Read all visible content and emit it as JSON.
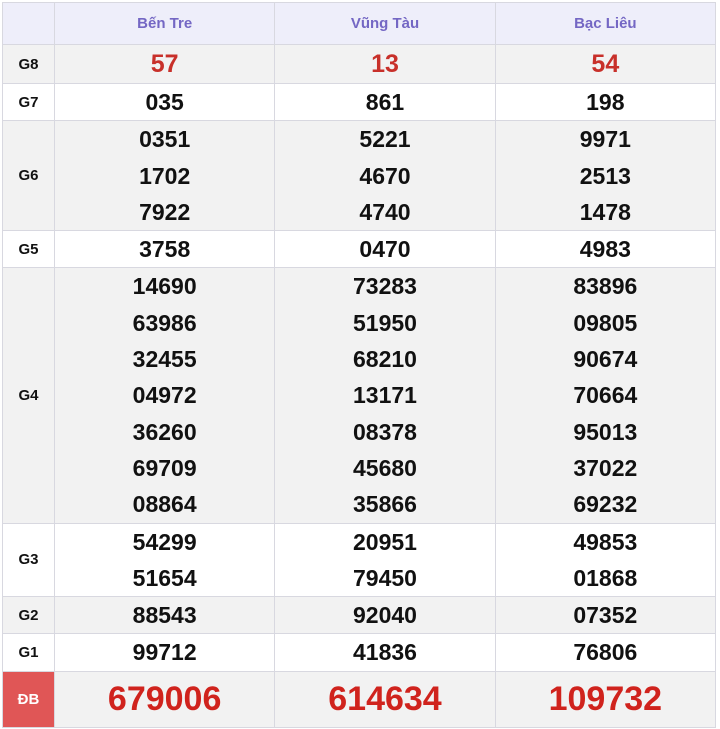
{
  "columns": [
    "Bến Tre",
    "Vũng Tàu",
    "Bạc Liêu"
  ],
  "colors": {
    "header_text": "#7467c4",
    "special_red": "#d0231d",
    "db_label_bg": "#e05656"
  },
  "rows": [
    {
      "label": "G8",
      "values": [
        [
          "57"
        ],
        [
          "13"
        ],
        [
          "54"
        ]
      ]
    },
    {
      "label": "G7",
      "values": [
        [
          "035"
        ],
        [
          "861"
        ],
        [
          "198"
        ]
      ]
    },
    {
      "label": "G6",
      "values": [
        [
          "0351",
          "1702",
          "7922"
        ],
        [
          "5221",
          "4670",
          "4740"
        ],
        [
          "9971",
          "2513",
          "1478"
        ]
      ]
    },
    {
      "label": "G5",
      "values": [
        [
          "3758"
        ],
        [
          "0470"
        ],
        [
          "4983"
        ]
      ]
    },
    {
      "label": "G4",
      "values": [
        [
          "14690",
          "63986",
          "32455",
          "04972",
          "36260",
          "69709",
          "08864"
        ],
        [
          "73283",
          "51950",
          "68210",
          "13171",
          "08378",
          "45680",
          "35866"
        ],
        [
          "83896",
          "09805",
          "90674",
          "70664",
          "95013",
          "37022",
          "69232"
        ]
      ]
    },
    {
      "label": "G3",
      "values": [
        [
          "54299",
          "51654"
        ],
        [
          "20951",
          "79450"
        ],
        [
          "49853",
          "01868"
        ]
      ]
    },
    {
      "label": "G2",
      "values": [
        [
          "88543"
        ],
        [
          "92040"
        ],
        [
          "07352"
        ]
      ]
    },
    {
      "label": "G1",
      "values": [
        [
          "99712"
        ],
        [
          "41836"
        ],
        [
          "76806"
        ]
      ]
    },
    {
      "label": "ĐB",
      "values": [
        [
          "679006"
        ],
        [
          "614634"
        ],
        [
          "109732"
        ]
      ]
    }
  ]
}
